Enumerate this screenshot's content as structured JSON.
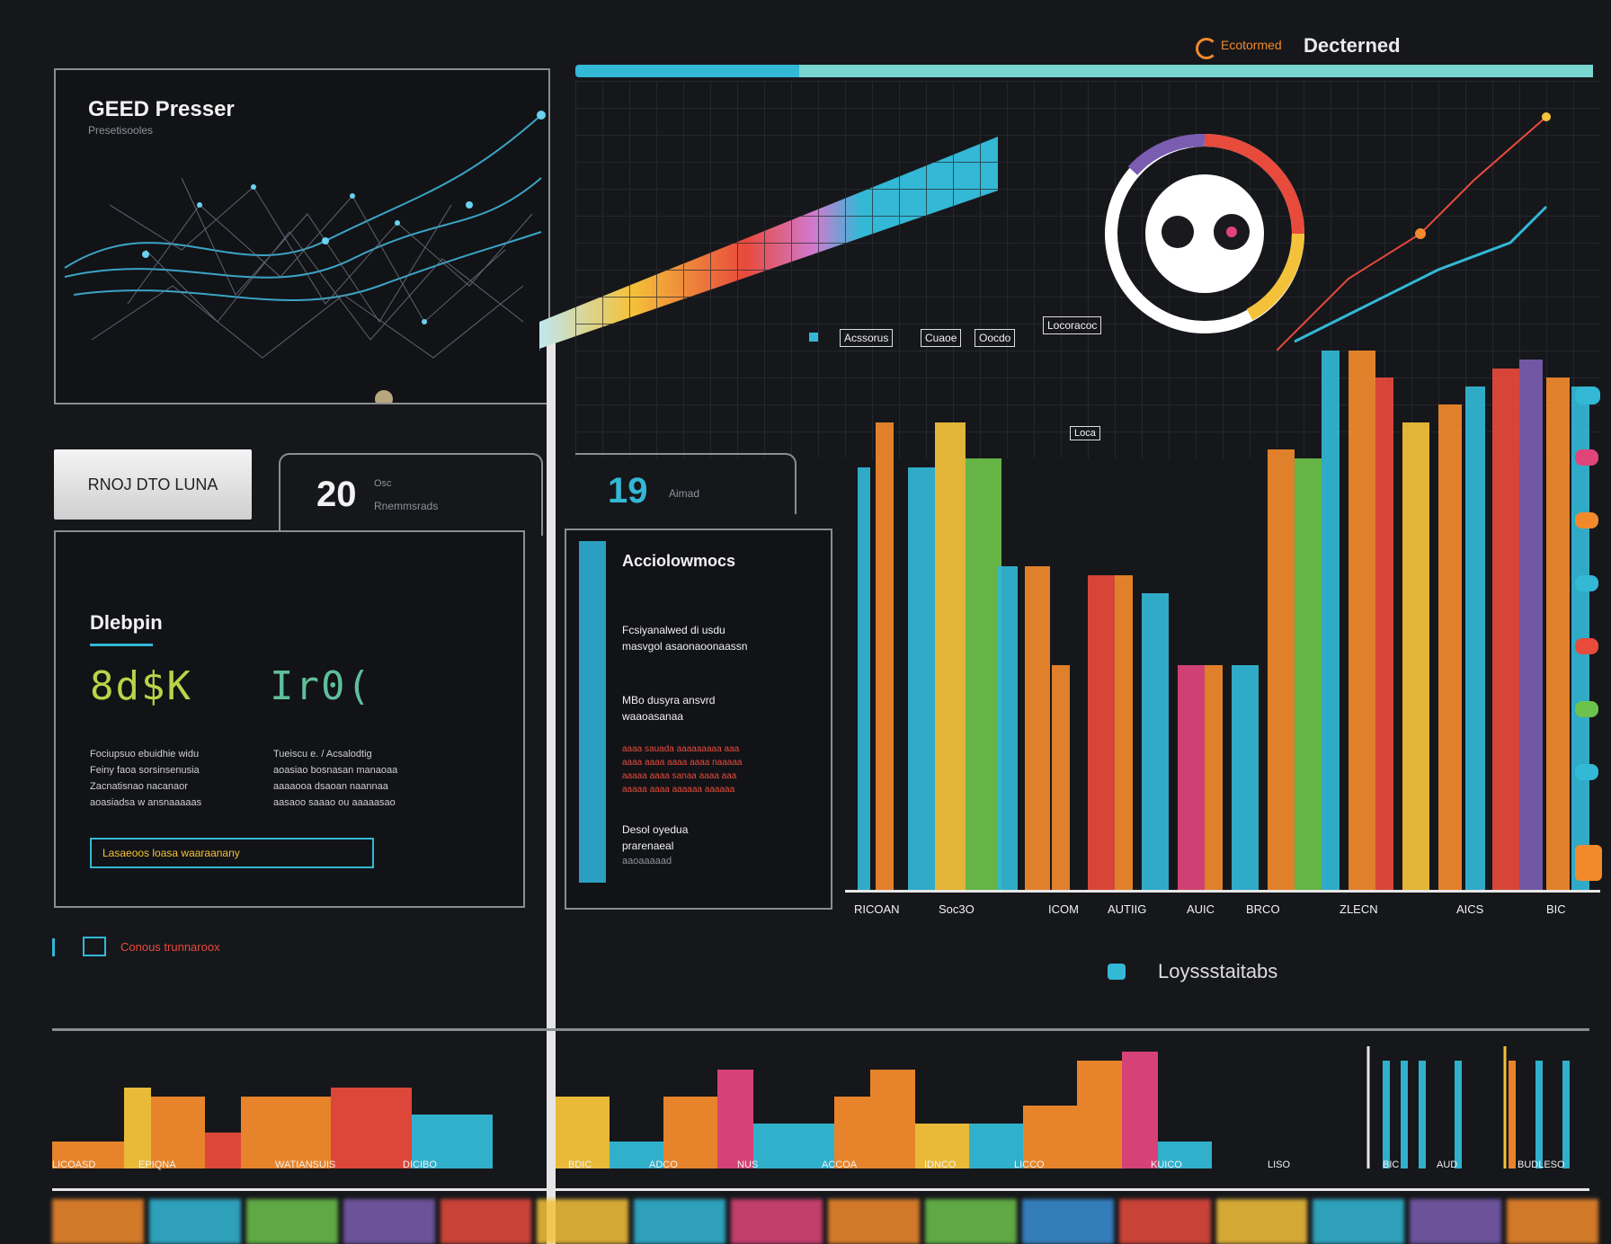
{
  "header": {
    "title": "Decterned",
    "prefix": "Ecotormed"
  },
  "top_panel": {
    "title": "GEED Presser",
    "subtitle": "Presetisooles"
  },
  "button": {
    "label": "RNOJ DTO LUNA"
  },
  "stat_a": {
    "value": "20",
    "label_small": "Osc",
    "caption": "Rnemmsrads"
  },
  "stat_b": {
    "value": "19",
    "caption": "Aimad"
  },
  "left_panel": {
    "title": "Dlebpin",
    "code_a": "8d$K",
    "code_b": "Ir0(",
    "text_a": [
      "Fociupsuo ebuidhie widu",
      "Feiny faoa sorsinsenusia",
      "Zacnatisnao nacanaor",
      "aoasiadsa w ansnaaaaas"
    ],
    "text_b": [
      "Tueiscu e. / Acsalodtig",
      "aoasiao bosnasan manaoaa",
      "aaaaooa dsaoan naannaa",
      "aasaoo saaao ou aaaaasao"
    ],
    "input_value": "Lasaeoos loasa waaraanany"
  },
  "alert": {
    "text": "Conous trunnaroox"
  },
  "middle_panel": {
    "title": "Acciolowmocs",
    "line1": "Fcsiyanalwed di usdu",
    "line2": "masvgol asaonaoonaassn",
    "line3": "MBo dusyra ansvrd",
    "line4": "waaoasanaa",
    "red_lines": [
      "aaaa sauada aaaaaaaaa aaa",
      "aaaa aaaa aaaa aaaa naaaaa",
      "aaaaa aaaa sanaa aaaa aaa",
      "aaaaa aaaa aaaaaa aaaaaa"
    ],
    "foot1": "Desol oyedua",
    "foot2": "prarenaeal",
    "foot3": "aaoaaaaad"
  },
  "tags": [
    "Acssorus",
    "Cuaoe",
    "Oocdo"
  ],
  "tag_right": "Locoracoc",
  "tag_low": "Loca",
  "legend": {
    "label": "Loyssstaitabs"
  },
  "main_chart_labels": [
    "RICOAN",
    "Soc3O",
    "ICOM",
    "AUTIIG",
    "AUIC",
    "BRCO",
    "ZLECN",
    "AICS",
    "BIC"
  ],
  "bottom_labels": [
    "LICOASD",
    "EPIQNA",
    "WATIANSUIS",
    "DICIBO",
    "BDIC",
    "ADCO",
    "NUS",
    "ACCOA",
    "IDNCO",
    "LICCO",
    "KUICO",
    "LISO",
    "BIC",
    "AUD",
    "BUDLESO"
  ],
  "colors": {
    "cyan": "#33b8d6",
    "orange": "#f28a2c",
    "red": "#e84a3c",
    "pink": "#e0457a",
    "yellow": "#f4c23a",
    "green": "#6cc24a",
    "purple": "#7a5db0",
    "blue": "#3a8fd8"
  }
}
